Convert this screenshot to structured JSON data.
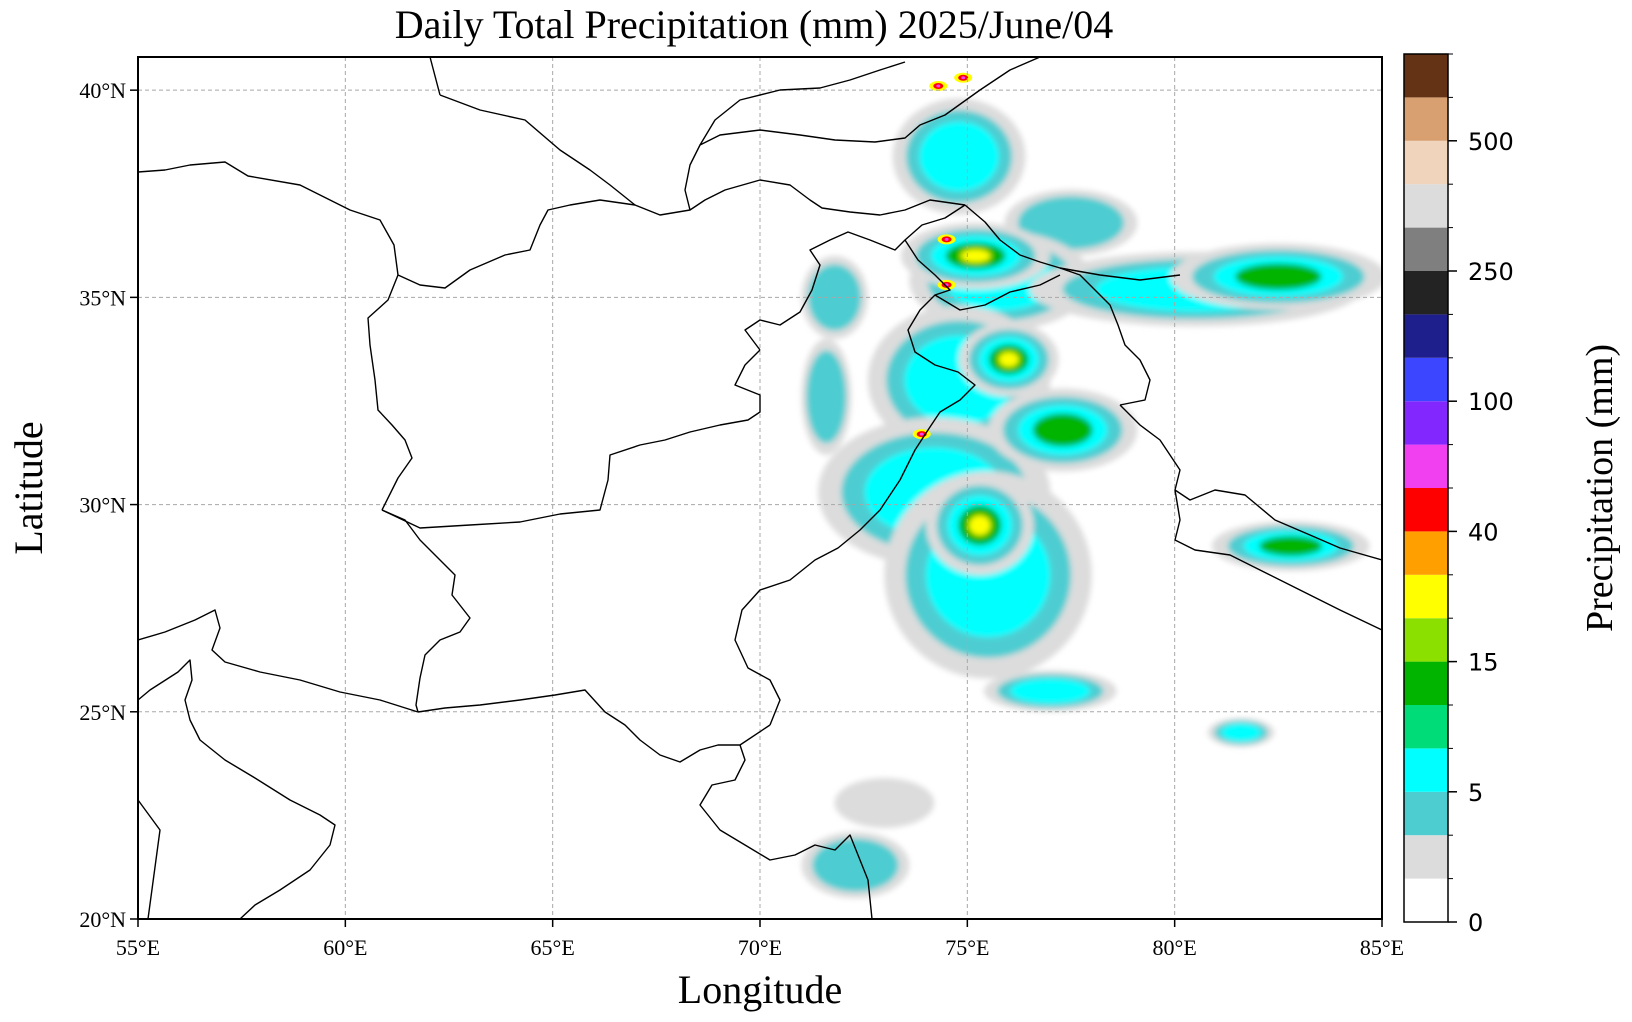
{
  "title": "Daily Total Precipitation (mm)  2025/June/04",
  "xlabel": "Longitude",
  "ylabel": "Latitude",
  "colorbar": {
    "label": "Precipitation (mm)",
    "tick_labels": [
      "0",
      "5",
      "15",
      "40",
      "100",
      "250",
      "500"
    ],
    "colors": [
      "#ffffff",
      "#dcdcdc",
      "#4ecdd1",
      "#00ffff",
      "#00dc78",
      "#00b400",
      "#8ce000",
      "#ffff00",
      "#ffa000",
      "#ff0000",
      "#f040f0",
      "#8228ff",
      "#3c46ff",
      "#1e1e8c",
      "#232323",
      "#7f7f7f",
      "#dcdcdc",
      "#f0d4bc",
      "#d8a070",
      "#643214"
    ]
  },
  "chart_data": {
    "type": "heatmap",
    "title": "Daily Total Precipitation (mm)  2025/June/04",
    "xlabel": "Longitude",
    "ylabel": "Latitude",
    "xlim": [
      55,
      85
    ],
    "ylim": [
      20,
      40.8
    ],
    "x_ticks": [
      55,
      60,
      65,
      70,
      75,
      80,
      85
    ],
    "x_tick_labels": [
      "55°E",
      "60°E",
      "65°E",
      "70°E",
      "75°E",
      "80°E",
      "85°E"
    ],
    "y_ticks": [
      20,
      25,
      30,
      35,
      40
    ],
    "y_tick_labels": [
      "20°N",
      "25°N",
      "30°N",
      "35°N",
      "40°N"
    ],
    "grid": true,
    "colorbar_label": "Precipitation (mm)",
    "colorbar_ticks": [
      0,
      5,
      15,
      40,
      100,
      250,
      500
    ],
    "rain_regions": [
      {
        "lon": 77.5,
        "lat": 36.8,
        "rlon": 1.6,
        "rlat": 0.8,
        "level": 2
      },
      {
        "lon": 75.8,
        "lat": 35.4,
        "rlon": 2.2,
        "rlat": 1.2,
        "level": 3
      },
      {
        "lon": 80.5,
        "lat": 35.2,
        "rlon": 4.0,
        "rlat": 0.9,
        "level": 3
      },
      {
        "lon": 82.5,
        "lat": 35.5,
        "rlon": 2.6,
        "rlat": 0.8,
        "level": 4
      },
      {
        "lon": 74.8,
        "lat": 38.4,
        "rlon": 1.6,
        "rlat": 1.4,
        "level": 3
      },
      {
        "lon": 75.2,
        "lat": 36.0,
        "rlon": 1.8,
        "rlat": 0.8,
        "level": 5
      },
      {
        "lon": 74.8,
        "lat": 33.0,
        "rlon": 2.2,
        "rlat": 1.8,
        "level": 3
      },
      {
        "lon": 76.0,
        "lat": 33.5,
        "rlon": 1.2,
        "rlat": 0.9,
        "level": 5
      },
      {
        "lon": 74.2,
        "lat": 30.3,
        "rlon": 2.8,
        "rlat": 1.8,
        "level": 3
      },
      {
        "lon": 75.5,
        "lat": 28.3,
        "rlon": 2.5,
        "rlat": 2.5,
        "level": 3
      },
      {
        "lon": 75.3,
        "lat": 29.5,
        "rlon": 1.3,
        "rlat": 1.2,
        "level": 5
      },
      {
        "lon": 77.3,
        "lat": 31.8,
        "rlon": 1.8,
        "rlat": 1.0,
        "level": 4
      },
      {
        "lon": 82.8,
        "lat": 29.0,
        "rlon": 1.9,
        "rlat": 0.6,
        "level": 4
      },
      {
        "lon": 77.0,
        "lat": 25.5,
        "rlon": 1.6,
        "rlat": 0.5,
        "level": 3
      },
      {
        "lon": 81.6,
        "lat": 24.5,
        "rlon": 0.8,
        "rlat": 0.35,
        "level": 3
      },
      {
        "lon": 72.3,
        "lat": 21.3,
        "rlon": 1.3,
        "rlat": 0.8,
        "level": 2
      },
      {
        "lon": 73.0,
        "lat": 22.8,
        "rlon": 1.2,
        "rlat": 0.6,
        "level": 1
      },
      {
        "lon": 71.6,
        "lat": 32.6,
        "rlon": 0.6,
        "rlat": 1.4,
        "level": 2
      },
      {
        "lon": 71.8,
        "lat": 35.0,
        "rlon": 0.8,
        "rlat": 1.0,
        "level": 2
      }
    ],
    "peak_points": [
      {
        "lon": 74.5,
        "lat": 36.4
      },
      {
        "lon": 74.5,
        "lat": 35.3
      },
      {
        "lon": 73.9,
        "lat": 31.7
      },
      {
        "lon": 74.9,
        "lat": 40.3
      },
      {
        "lon": 74.3,
        "lat": 40.1
      }
    ]
  }
}
